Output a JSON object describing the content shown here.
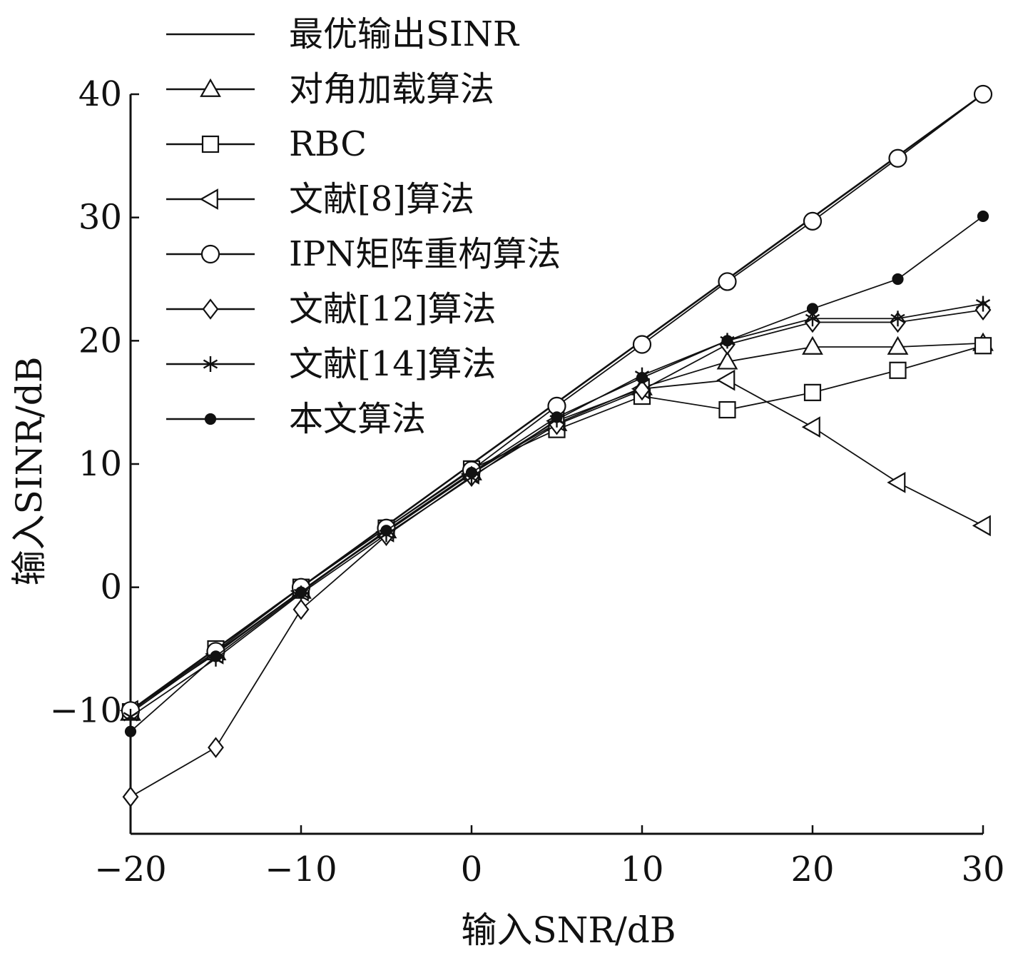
{
  "chart_data": {
    "type": "line",
    "xlabel": "输入SNR/dB",
    "ylabel": "输入SINR/dB",
    "xlim": [
      -20,
      30
    ],
    "ylim": [
      -20,
      40
    ],
    "xticks": [
      -20,
      -10,
      0,
      10,
      20,
      30
    ],
    "yticks": [
      -10,
      0,
      10,
      20,
      30,
      40
    ],
    "grid": false,
    "legend_position": "top-left",
    "x": [
      -20,
      -15,
      -10,
      -5,
      0,
      5,
      10,
      15,
      20,
      25,
      30
    ],
    "series": [
      {
        "name": "最优输出SINR",
        "marker": "none",
        "values": [
          -10,
          -5,
          0,
          5,
          10,
          15,
          20,
          25,
          30,
          35,
          40
        ]
      },
      {
        "name": "对角加载算法",
        "marker": "triangle-up",
        "values": [
          -10.2,
          -5.3,
          -0.3,
          4.6,
          9.3,
          13.3,
          16.2,
          18.3,
          19.5,
          19.5,
          19.8
        ]
      },
      {
        "name": "RBC",
        "marker": "square",
        "values": [
          -10.1,
          -5.0,
          0,
          4.8,
          9.6,
          12.8,
          15.5,
          14.4,
          15.8,
          17.6,
          19.6
        ]
      },
      {
        "name": "文献[8]算法",
        "marker": "triangle-left",
        "values": [
          -10.0,
          -5.4,
          -0.3,
          4.5,
          9.2,
          13.5,
          16.1,
          16.8,
          13.0,
          8.5,
          5.0
        ]
      },
      {
        "name": "IPN矩阵重构算法",
        "marker": "circle-open",
        "values": [
          -10.0,
          -5.2,
          0,
          4.8,
          9.5,
          14.7,
          19.7,
          24.8,
          29.7,
          34.8,
          40.0
        ]
      },
      {
        "name": "文献[12]算法",
        "marker": "diamond",
        "values": [
          -17.0,
          -13.0,
          -1.8,
          4.2,
          9.0,
          13.2,
          16.0,
          19.7,
          21.5,
          21.5,
          22.5
        ]
      },
      {
        "name": "文献[14]算法",
        "marker": "asterisk",
        "values": [
          -10.5,
          -5.8,
          -0.5,
          4.3,
          8.9,
          13.6,
          17.2,
          20.0,
          21.8,
          21.8,
          23.0
        ]
      },
      {
        "name": "本文算法",
        "marker": "circle-filled",
        "values": [
          -11.7,
          -5.6,
          -0.4,
          4.6,
          9.3,
          13.8,
          17.0,
          20.0,
          22.6,
          25.0,
          30.1
        ]
      }
    ]
  }
}
